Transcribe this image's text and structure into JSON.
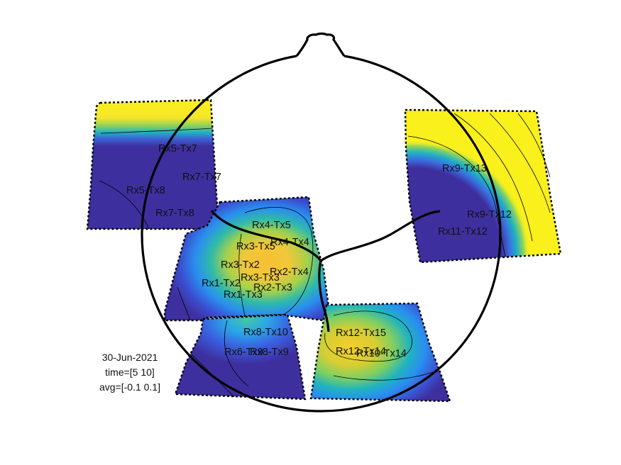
{
  "colors": {
    "background": "#ffffff",
    "outline": "#000000",
    "colormap_low": "#3e2f9f",
    "colormap_mid": "#1fb0c4",
    "colormap_high": "#f9f01c"
  },
  "annotation": {
    "date": "30-Jun-2021",
    "time": "time=[5 10]",
    "avg": "avg=[-0.1 0.1]"
  },
  "channels": [
    "Rx5-Tx7",
    "Rx7-Tx7",
    "Rx5-Tx8",
    "Rx7-Tx8",
    "Rx9-Tx13",
    "Rx9-Tx12",
    "Rx11-Tx12",
    "Rx4-Tx5",
    "Rx3-Tx5",
    "Rx4-Tx4",
    "Rx3-Tx2",
    "Rx2-Tx4",
    "Rx3-Tx3",
    "Rx1-Tx2",
    "Rx2-Tx3",
    "Rx1-Tx3",
    "Rx8-Tx10",
    "Rx6-Tx9",
    "Rx8-Tx9",
    "Rx12-Tx15",
    "Rx12-Tx14",
    "Rx10-Tx14"
  ]
}
